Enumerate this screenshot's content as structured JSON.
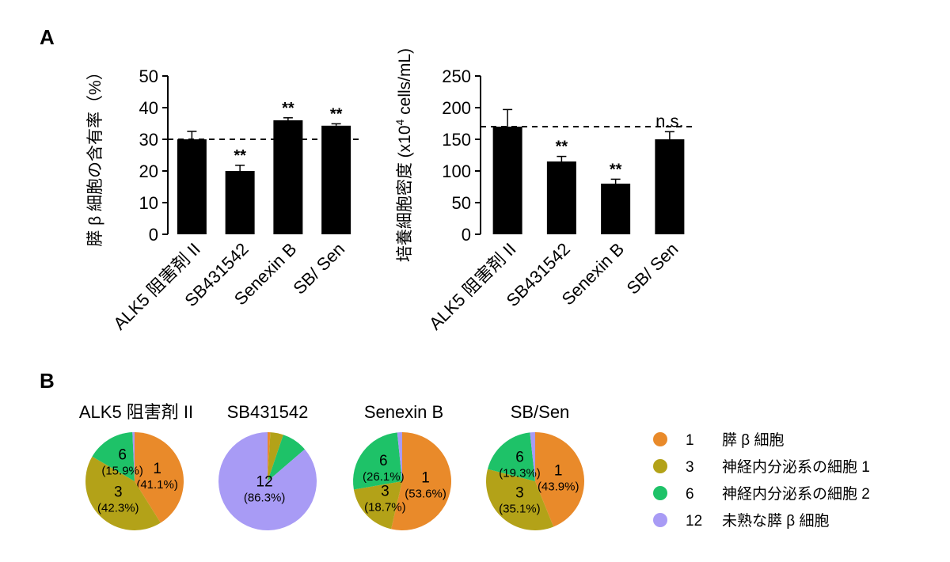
{
  "panels": {
    "a_label": "A",
    "b_label": "B"
  },
  "chart_data": [
    {
      "type": "bar",
      "ylabel": "膵 β 細胞の含有率（%）",
      "ylim": [
        0,
        50
      ],
      "yticks": [
        0,
        10,
        20,
        30,
        40,
        50
      ],
      "categories": [
        "ALK5 阻害剤 II",
        "SB431542",
        "Senexin B",
        "SB/ Sen"
      ],
      "values": [
        30,
        20,
        36,
        34.3
      ],
      "errors": [
        2.5,
        1.8,
        0.8,
        0.6
      ],
      "annotations": [
        "",
        "**",
        "**",
        "**"
      ],
      "reference_line": 30
    },
    {
      "type": "bar",
      "ylabel_pre": "培養細胞密度 (x10",
      "ylabel_sup": "4",
      "ylabel_post": " cells/mL)",
      "ylim": [
        0,
        250
      ],
      "yticks": [
        0,
        50,
        100,
        150,
        200,
        250
      ],
      "categories": [
        "ALK5 阻害剤 II",
        "SB431542",
        "Senexin B",
        "SB/ Sen"
      ],
      "values": [
        170,
        115,
        80,
        150
      ],
      "errors": [
        27,
        8,
        7,
        12
      ],
      "annotations": [
        "",
        "**",
        "**",
        "n.s."
      ],
      "reference_line": 170
    },
    {
      "type": "pie",
      "charts": [
        {
          "title": "ALK5 阻害剤 II",
          "slices": [
            {
              "cluster": "1",
              "value": 41.1,
              "pct": "(41.1%)"
            },
            {
              "cluster": "3",
              "value": 42.3,
              "pct": "(42.3%)"
            },
            {
              "cluster": "6",
              "value": 15.9,
              "pct": "(15.9%)"
            },
            {
              "cluster": "12",
              "value": 0.7,
              "pct": ""
            }
          ]
        },
        {
          "title": "SB431542",
          "slices": [
            {
              "cluster": "1",
              "value": 0.9,
              "pct": ""
            },
            {
              "cluster": "3",
              "value": 4.3,
              "pct": ""
            },
            {
              "cluster": "6",
              "value": 8.5,
              "pct": ""
            },
            {
              "cluster": "12",
              "value": 86.3,
              "pct": "(86.3%)"
            }
          ]
        },
        {
          "title": "Senexin B",
          "slices": [
            {
              "cluster": "1",
              "value": 53.6,
              "pct": "(53.6%)"
            },
            {
              "cluster": "3",
              "value": 18.7,
              "pct": "(18.7%)"
            },
            {
              "cluster": "6",
              "value": 26.1,
              "pct": "(26.1%)"
            },
            {
              "cluster": "12",
              "value": 1.6,
              "pct": ""
            }
          ]
        },
        {
          "title": "SB/Sen",
          "slices": [
            {
              "cluster": "1",
              "value": 43.9,
              "pct": "(43.9%)"
            },
            {
              "cluster": "3",
              "value": 35.1,
              "pct": "(35.1%)"
            },
            {
              "cluster": "6",
              "value": 19.3,
              "pct": "(19.3%)"
            },
            {
              "cluster": "12",
              "value": 1.7,
              "pct": ""
            }
          ]
        }
      ],
      "legend": [
        {
          "number": "1",
          "label": "膵 β 細胞",
          "color": "#E98A2A"
        },
        {
          "number": "3",
          "label": "神経内分泌系の細胞 1",
          "color": "#B3A218"
        },
        {
          "number": "6",
          "label": "神経内分泌系の細胞 2",
          "color": "#1EC268"
        },
        {
          "number": "12",
          "label": "未熟な膵 β 細胞",
          "color": "#A89BF5"
        }
      ]
    }
  ]
}
